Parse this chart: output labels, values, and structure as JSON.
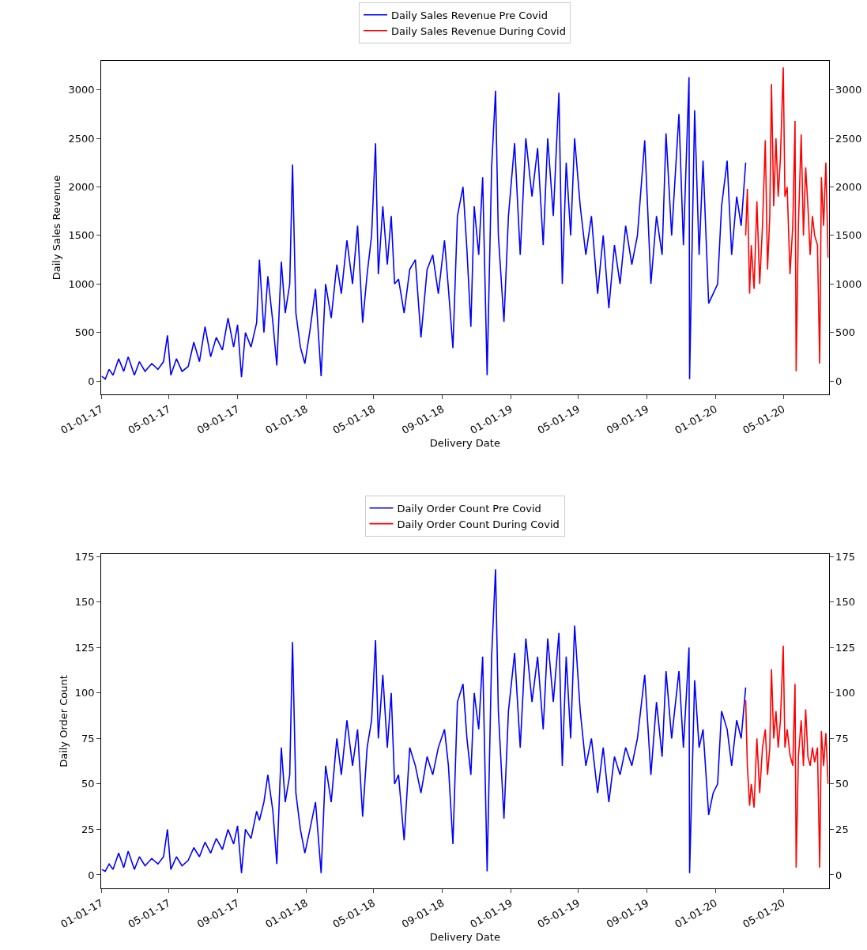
{
  "chart_data": [
    {
      "type": "line",
      "xlabel": "Delivery Date",
      "ylabel": "Daily Sales Revenue",
      "legend": "top",
      "xlim": [
        "2017-01-01",
        "2020-07-21"
      ],
      "xticks": [
        {
          "value": "2017-01-01",
          "label": "01-01-17"
        },
        {
          "value": "2017-05-01",
          "label": "05-01-17"
        },
        {
          "value": "2017-09-01",
          "label": "09-01-17"
        },
        {
          "value": "2018-01-01",
          "label": "01-01-18"
        },
        {
          "value": "2018-05-01",
          "label": "05-01-18"
        },
        {
          "value": "2018-09-01",
          "label": "09-01-18"
        },
        {
          "value": "2019-01-01",
          "label": "01-01-19"
        },
        {
          "value": "2019-05-01",
          "label": "05-01-19"
        },
        {
          "value": "2019-09-01",
          "label": "09-01-19"
        },
        {
          "value": "2020-01-01",
          "label": "01-01-20"
        },
        {
          "value": "2020-05-01",
          "label": "05-01-20"
        }
      ],
      "ylim": [
        -140,
        3300
      ],
      "yticks": [
        0,
        500,
        1000,
        1500,
        2000,
        2500,
        3000
      ],
      "y2lim": [
        -140,
        3300
      ],
      "y2ticks": [
        0,
        500,
        1000,
        1500,
        2000,
        2500,
        3000
      ],
      "series": [
        {
          "name": "Daily Sales Revenue Pre Covid",
          "color": "#0000ff",
          "x": [
            "2017-01-02",
            "2017-01-08",
            "2017-01-15",
            "2017-01-22",
            "2017-02-01",
            "2017-02-10",
            "2017-02-18",
            "2017-03-01",
            "2017-03-10",
            "2017-03-20",
            "2017-04-01",
            "2017-04-12",
            "2017-04-22",
            "2017-04-29",
            "2017-05-05",
            "2017-05-15",
            "2017-05-25",
            "2017-06-05",
            "2017-06-15",
            "2017-06-25",
            "2017-07-05",
            "2017-07-15",
            "2017-07-25",
            "2017-08-05",
            "2017-08-15",
            "2017-08-25",
            "2017-09-01",
            "2017-09-08",
            "2017-09-15",
            "2017-09-25",
            "2017-10-05",
            "2017-10-10",
            "2017-10-18",
            "2017-10-25",
            "2017-11-03",
            "2017-11-10",
            "2017-11-18",
            "2017-11-25",
            "2017-12-03",
            "2017-12-08",
            "2017-12-14",
            "2017-12-22",
            "2017-12-30",
            "2018-01-08",
            "2018-01-18",
            "2018-01-28",
            "2018-02-05",
            "2018-02-15",
            "2018-02-25",
            "2018-03-05",
            "2018-03-15",
            "2018-03-25",
            "2018-04-03",
            "2018-04-12",
            "2018-04-20",
            "2018-04-28",
            "2018-05-05",
            "2018-05-10",
            "2018-05-18",
            "2018-05-26",
            "2018-06-02",
            "2018-06-08",
            "2018-06-15",
            "2018-06-25",
            "2018-07-05",
            "2018-07-15",
            "2018-07-25",
            "2018-08-05",
            "2018-08-15",
            "2018-08-25",
            "2018-09-05",
            "2018-09-12",
            "2018-09-20",
            "2018-09-28",
            "2018-10-08",
            "2018-10-15",
            "2018-10-22",
            "2018-10-28",
            "2018-11-05",
            "2018-11-12",
            "2018-11-20",
            "2018-11-28",
            "2018-12-05",
            "2018-12-10",
            "2018-12-20",
            "2018-12-28",
            "2019-01-08",
            "2019-01-18",
            "2019-01-28",
            "2019-02-08",
            "2019-02-18",
            "2019-02-28",
            "2019-03-08",
            "2019-03-18",
            "2019-03-28",
            "2019-04-03",
            "2019-04-10",
            "2019-04-18",
            "2019-04-25",
            "2019-05-05",
            "2019-05-15",
            "2019-05-25",
            "2019-06-05",
            "2019-06-15",
            "2019-06-25",
            "2019-07-05",
            "2019-07-15",
            "2019-07-25",
            "2019-08-05",
            "2019-08-15",
            "2019-08-28",
            "2019-09-08",
            "2019-09-18",
            "2019-09-28",
            "2019-10-05",
            "2019-10-15",
            "2019-10-28",
            "2019-11-05",
            "2019-11-15",
            "2019-11-16",
            "2019-11-25",
            "2019-12-03",
            "2019-12-10",
            "2019-12-20",
            "2019-12-28",
            "2020-01-05",
            "2020-01-12",
            "2020-01-22",
            "2020-01-30",
            "2020-02-08",
            "2020-02-16",
            "2020-02-24"
          ],
          "values": [
            50,
            20,
            120,
            60,
            230,
            100,
            250,
            60,
            200,
            100,
            180,
            120,
            200,
            470,
            60,
            230,
            100,
            150,
            400,
            200,
            560,
            250,
            450,
            320,
            650,
            350,
            580,
            40,
            500,
            350,
            600,
            1250,
            500,
            1080,
            600,
            160,
            1230,
            700,
            1000,
            2230,
            700,
            350,
            180,
            520,
            950,
            50,
            1000,
            650,
            1200,
            900,
            1450,
            1000,
            1600,
            600,
            1100,
            1500,
            2450,
            1100,
            1800,
            1200,
            1700,
            1000,
            1050,
            700,
            1150,
            1250,
            450,
            1150,
            1300,
            900,
            1450,
            950,
            340,
            1700,
            2000,
            1350,
            560,
            1800,
            1300,
            2100,
            60,
            2200,
            2990,
            1500,
            610,
            1700,
            2450,
            1300,
            2500,
            1900,
            2400,
            1400,
            2500,
            1700,
            2970,
            1000,
            2250,
            1500,
            2500,
            1800,
            1300,
            1700,
            900,
            1500,
            750,
            1400,
            1000,
            1600,
            1200,
            1500,
            2480,
            1000,
            1700,
            1300,
            2550,
            1500,
            2750,
            1400,
            3130,
            20,
            2790,
            1300,
            2270,
            800,
            900,
            1000,
            1800,
            2270,
            1300,
            1900,
            1600,
            2250
          ]
        },
        {
          "name": "Daily Sales Revenue During Covid",
          "color": "#ff0000",
          "x": [
            "2020-02-24",
            "2020-02-27",
            "2020-03-02",
            "2020-03-05",
            "2020-03-10",
            "2020-03-15",
            "2020-03-20",
            "2020-03-25",
            "2020-03-30",
            "2020-04-03",
            "2020-04-07",
            "2020-04-10",
            "2020-04-14",
            "2020-04-18",
            "2020-04-22",
            "2020-04-26",
            "2020-05-01",
            "2020-05-04",
            "2020-05-08",
            "2020-05-13",
            "2020-05-18",
            "2020-05-22",
            "2020-05-24",
            "2020-05-28",
            "2020-06-02",
            "2020-06-06",
            "2020-06-10",
            "2020-06-14",
            "2020-06-18",
            "2020-06-22",
            "2020-06-26",
            "2020-07-01",
            "2020-07-05",
            "2020-07-08",
            "2020-07-12",
            "2020-07-16",
            "2020-07-20"
          ],
          "values": [
            1500,
            1980,
            900,
            1400,
            950,
            1850,
            1000,
            1600,
            2480,
            1150,
            1700,
            3060,
            1800,
            2500,
            1900,
            2300,
            3230,
            1900,
            2000,
            1100,
            1600,
            2680,
            100,
            1600,
            2540,
            1500,
            2200,
            1800,
            1300,
            1700,
            1500,
            1400,
            180,
            2100,
            1600,
            2250,
            1270
          ]
        }
      ]
    },
    {
      "type": "line",
      "xlabel": "Delivery Date",
      "ylabel": "Daily Order Count",
      "legend": "top",
      "xlim": [
        "2017-01-01",
        "2020-07-21"
      ],
      "xticks": [
        {
          "value": "2017-01-01",
          "label": "01-01-17"
        },
        {
          "value": "2017-05-01",
          "label": "05-01-17"
        },
        {
          "value": "2017-09-01",
          "label": "09-01-17"
        },
        {
          "value": "2018-01-01",
          "label": "01-01-18"
        },
        {
          "value": "2018-05-01",
          "label": "05-01-18"
        },
        {
          "value": "2018-09-01",
          "label": "09-01-18"
        },
        {
          "value": "2019-01-01",
          "label": "01-01-19"
        },
        {
          "value": "2019-05-01",
          "label": "05-01-19"
        },
        {
          "value": "2019-09-01",
          "label": "09-01-19"
        },
        {
          "value": "2020-01-01",
          "label": "01-01-20"
        },
        {
          "value": "2020-05-01",
          "label": "05-01-20"
        }
      ],
      "ylim": [
        -7.5,
        176.5
      ],
      "yticks": [
        0,
        25,
        50,
        75,
        100,
        125,
        150,
        175
      ],
      "y2lim": [
        -7.5,
        176.5
      ],
      "y2ticks": [
        0,
        25,
        50,
        75,
        100,
        125,
        150,
        175
      ],
      "series": [
        {
          "name": "Daily Order Count Pre Covid",
          "color": "#0000ff",
          "x": [
            "2017-01-02",
            "2017-01-08",
            "2017-01-15",
            "2017-01-22",
            "2017-02-01",
            "2017-02-10",
            "2017-02-18",
            "2017-03-01",
            "2017-03-10",
            "2017-03-20",
            "2017-04-01",
            "2017-04-12",
            "2017-04-22",
            "2017-04-29",
            "2017-05-05",
            "2017-05-15",
            "2017-05-25",
            "2017-06-05",
            "2017-06-15",
            "2017-06-25",
            "2017-07-05",
            "2017-07-15",
            "2017-07-25",
            "2017-08-05",
            "2017-08-15",
            "2017-08-25",
            "2017-09-01",
            "2017-09-08",
            "2017-09-15",
            "2017-09-25",
            "2017-10-05",
            "2017-10-10",
            "2017-10-18",
            "2017-10-25",
            "2017-11-03",
            "2017-11-10",
            "2017-11-18",
            "2017-11-25",
            "2017-12-03",
            "2017-12-08",
            "2017-12-14",
            "2017-12-22",
            "2017-12-30",
            "2018-01-08",
            "2018-01-18",
            "2018-01-28",
            "2018-02-05",
            "2018-02-15",
            "2018-02-25",
            "2018-03-05",
            "2018-03-15",
            "2018-03-25",
            "2018-04-03",
            "2018-04-12",
            "2018-04-20",
            "2018-04-28",
            "2018-05-05",
            "2018-05-10",
            "2018-05-18",
            "2018-05-26",
            "2018-06-02",
            "2018-06-08",
            "2018-06-15",
            "2018-06-25",
            "2018-07-05",
            "2018-07-15",
            "2018-07-25",
            "2018-08-05",
            "2018-08-15",
            "2018-08-25",
            "2018-09-05",
            "2018-09-12",
            "2018-09-20",
            "2018-09-28",
            "2018-10-08",
            "2018-10-15",
            "2018-10-22",
            "2018-10-28",
            "2018-11-05",
            "2018-11-12",
            "2018-11-20",
            "2018-11-28",
            "2018-12-05",
            "2018-12-10",
            "2018-12-20",
            "2018-12-28",
            "2019-01-08",
            "2019-01-18",
            "2019-01-28",
            "2019-02-08",
            "2019-02-18",
            "2019-02-28",
            "2019-03-08",
            "2019-03-18",
            "2019-03-28",
            "2019-04-03",
            "2019-04-10",
            "2019-04-18",
            "2019-04-25",
            "2019-05-05",
            "2019-05-15",
            "2019-05-25",
            "2019-06-05",
            "2019-06-15",
            "2019-06-25",
            "2019-07-05",
            "2019-07-15",
            "2019-07-25",
            "2019-08-05",
            "2019-08-15",
            "2019-08-28",
            "2019-09-08",
            "2019-09-18",
            "2019-09-28",
            "2019-10-05",
            "2019-10-15",
            "2019-10-28",
            "2019-11-05",
            "2019-11-15",
            "2019-11-16",
            "2019-11-25",
            "2019-12-03",
            "2019-12-10",
            "2019-12-20",
            "2019-12-28",
            "2020-01-05",
            "2020-01-12",
            "2020-01-22",
            "2020-01-30",
            "2020-02-08",
            "2020-02-16",
            "2020-02-24"
          ],
          "values": [
            3,
            2,
            6,
            3,
            12,
            4,
            13,
            3,
            10,
            5,
            9,
            6,
            10,
            25,
            3,
            10,
            5,
            8,
            15,
            10,
            18,
            12,
            20,
            14,
            25,
            17,
            27,
            1,
            25,
            20,
            35,
            30,
            40,
            55,
            35,
            6,
            70,
            40,
            55,
            128,
            45,
            25,
            12,
            25,
            40,
            1,
            60,
            40,
            75,
            55,
            85,
            60,
            80,
            32,
            70,
            85,
            129,
            75,
            110,
            70,
            100,
            50,
            55,
            19,
            70,
            60,
            45,
            65,
            55,
            70,
            80,
            60,
            17,
            95,
            105,
            75,
            55,
            100,
            80,
            120,
            2,
            120,
            168,
            90,
            31,
            90,
            122,
            70,
            130,
            95,
            120,
            80,
            130,
            95,
            133,
            60,
            120,
            75,
            137,
            90,
            60,
            75,
            45,
            70,
            40,
            65,
            55,
            70,
            60,
            75,
            110,
            55,
            95,
            65,
            112,
            75,
            112,
            70,
            125,
            1,
            107,
            70,
            80,
            33,
            45,
            50,
            90,
            80,
            60,
            85,
            75,
            103
          ]
        },
        {
          "name": "Daily Order Count During Covid",
          "color": "#ff0000",
          "x": [
            "2020-02-24",
            "2020-02-27",
            "2020-03-02",
            "2020-03-05",
            "2020-03-10",
            "2020-03-15",
            "2020-03-20",
            "2020-03-25",
            "2020-03-30",
            "2020-04-03",
            "2020-04-07",
            "2020-04-10",
            "2020-04-14",
            "2020-04-18",
            "2020-04-22",
            "2020-04-26",
            "2020-05-01",
            "2020-05-04",
            "2020-05-08",
            "2020-05-13",
            "2020-05-18",
            "2020-05-22",
            "2020-05-24",
            "2020-05-28",
            "2020-06-02",
            "2020-06-06",
            "2020-06-10",
            "2020-06-14",
            "2020-06-18",
            "2020-06-22",
            "2020-06-26",
            "2020-07-01",
            "2020-07-05",
            "2020-07-08",
            "2020-07-12",
            "2020-07-16",
            "2020-07-20"
          ],
          "values": [
            96,
            60,
            38,
            50,
            37,
            75,
            45,
            70,
            80,
            55,
            70,
            113,
            75,
            90,
            70,
            85,
            126,
            70,
            80,
            66,
            60,
            105,
            4,
            65,
            85,
            60,
            91,
            65,
            60,
            70,
            62,
            70,
            4,
            79,
            60,
            78,
            50
          ]
        }
      ]
    }
  ]
}
